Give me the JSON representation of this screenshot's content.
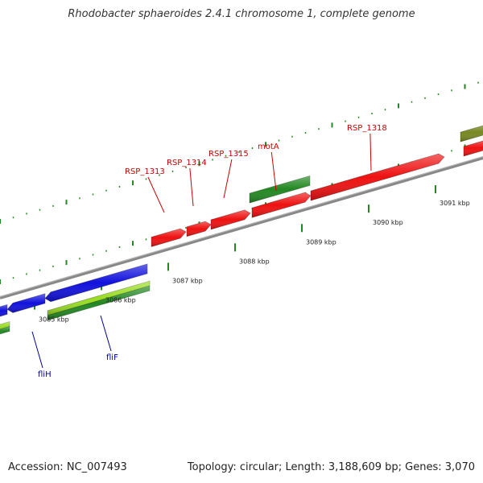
{
  "title": "Rhodobacter sphaeroides 2.4.1 chromosome 1, complete genome",
  "footer": {
    "accession": "Accession: NC_007493",
    "stats": "Topology: circular; Length: 3,188,609 bp; Genes: 3,070"
  },
  "colors": {
    "forward_gene": "#ee1111",
    "reverse_gene": "#1111dd",
    "rna_feature": "#228822",
    "cds_feature": "#99dd22",
    "olive_feature": "#778822",
    "backbone": "#888888",
    "tick": "#228822",
    "forward_label": "#cc0000",
    "reverse_label": "#000099"
  },
  "scale_labels": [
    "3085 kbp",
    "3086 kbp",
    "3087 kbp",
    "3088 kbp",
    "3089 kbp",
    "3090 kbp",
    "3091 kbp"
  ],
  "gene_labels": {
    "forward": [
      "RSP_1313",
      "RSP_1314",
      "RSP_1315",
      "motA",
      "RSP_1318"
    ],
    "reverse": [
      "fliH",
      "fliF"
    ]
  }
}
